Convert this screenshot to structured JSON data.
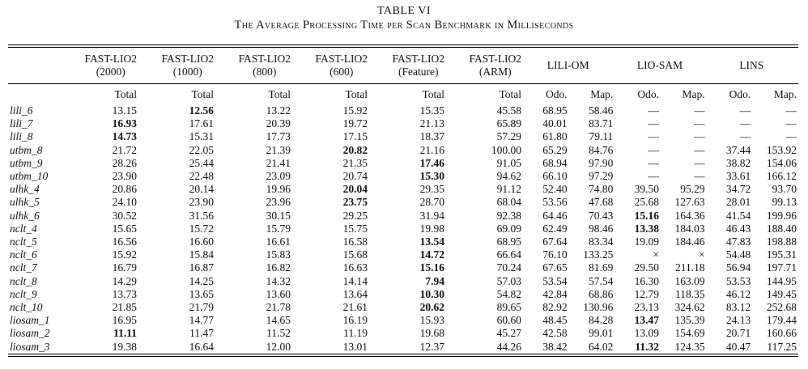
{
  "title": "TABLE VI",
  "subtitle": "The Average Processing Time per Scan Benchmark in Milliseconds",
  "table": {
    "groups": [
      {
        "name": "FAST-LIO2",
        "detail": "(2000)",
        "subs": [
          "Total"
        ]
      },
      {
        "name": "FAST-LIO2",
        "detail": "(1000)",
        "subs": [
          "Total"
        ]
      },
      {
        "name": "FAST-LIO2",
        "detail": "(800)",
        "subs": [
          "Total"
        ]
      },
      {
        "name": "FAST-LIO2",
        "detail": "(600)",
        "subs": [
          "Total"
        ]
      },
      {
        "name": "FAST-LIO2",
        "detail": "(Feature)",
        "subs": [
          "Total"
        ]
      },
      {
        "name": "FAST-LIO2",
        "detail": "(ARM)",
        "subs": [
          "Total"
        ]
      },
      {
        "name": "LILI-OM",
        "detail": "",
        "subs": [
          "Odo.",
          "Map."
        ]
      },
      {
        "name": "LIO-SAM",
        "detail": "",
        "subs": [
          "Odo.",
          "Map."
        ]
      },
      {
        "name": "LINS",
        "detail": "",
        "subs": [
          "Odo.",
          "Map."
        ]
      }
    ],
    "missing_mark": "—",
    "failure_mark": "×",
    "rows": [
      {
        "label": "lili_6",
        "values": [
          "13.15",
          "12.56",
          "13.22",
          "15.92",
          "15.35",
          "45.58",
          "68.95",
          "58.46",
          "—",
          "—",
          "—",
          "—"
        ],
        "bold": [
          1
        ]
      },
      {
        "label": "lili_7",
        "values": [
          "16.93",
          "17.61",
          "20.39",
          "19.72",
          "21.13",
          "65.89",
          "40.01",
          "83.71",
          "—",
          "—",
          "—",
          "—"
        ],
        "bold": [
          0
        ]
      },
      {
        "label": "lili_8",
        "values": [
          "14.73",
          "15.31",
          "17.73",
          "17.15",
          "18.37",
          "57.29",
          "61.80",
          "79.11",
          "—",
          "—",
          "—",
          "—"
        ],
        "bold": [
          0
        ]
      },
      {
        "label": "utbm_8",
        "values": [
          "21.72",
          "22.05",
          "21.39",
          "20.82",
          "21.16",
          "100.00",
          "65.29",
          "84.76",
          "—",
          "—",
          "37.44",
          "153.92"
        ],
        "bold": [
          3
        ]
      },
      {
        "label": "utbm_9",
        "values": [
          "28.26",
          "25.44",
          "21.41",
          "21.35",
          "17.46",
          "91.05",
          "68.94",
          "97.90",
          "—",
          "—",
          "38.82",
          "154.06"
        ],
        "bold": [
          4
        ]
      },
      {
        "label": "utbm_10",
        "values": [
          "23.90",
          "22.48",
          "23.09",
          "20.74",
          "15.30",
          "94.62",
          "66.10",
          "97.29",
          "—",
          "—",
          "33.61",
          "166.12"
        ],
        "bold": [
          4
        ]
      },
      {
        "label": "ulhk_4",
        "values": [
          "20.86",
          "20.14",
          "19.96",
          "20.04",
          "29.35",
          "91.12",
          "52.40",
          "74.80",
          "39.50",
          "95.29",
          "34.72",
          "93.70"
        ],
        "bold": [
          3
        ]
      },
      {
        "label": "ulhk_5",
        "values": [
          "24.10",
          "23.90",
          "23.96",
          "23.75",
          "28.70",
          "68.04",
          "53.56",
          "47.68",
          "25.68",
          "127.63",
          "28.01",
          "99.13"
        ],
        "bold": [
          3
        ]
      },
      {
        "label": "ulhk_6",
        "values": [
          "30.52",
          "31.56",
          "30.15",
          "29.25",
          "31.94",
          "92.38",
          "64.46",
          "70.43",
          "15.16",
          "164.36",
          "41.54",
          "199.96"
        ],
        "bold": [
          8
        ]
      },
      {
        "label": "nclt_4",
        "values": [
          "15.65",
          "15.72",
          "15.79",
          "15.75",
          "19.98",
          "69.09",
          "62.49",
          "98.46",
          "13.38",
          "184.03",
          "46.43",
          "188.40"
        ],
        "bold": [
          8
        ]
      },
      {
        "label": "nclt_5",
        "values": [
          "16.56",
          "16.60",
          "16.61",
          "16.58",
          "13.54",
          "68.95",
          "67.64",
          "83.34",
          "19.09",
          "184.46",
          "47.83",
          "198.88"
        ],
        "bold": [
          4
        ]
      },
      {
        "label": "nclt_6",
        "values": [
          "15.92",
          "15.84",
          "15.83",
          "15.68",
          "14.72",
          "66.64",
          "76.10",
          "133.25",
          "×",
          "×",
          "54.48",
          "195.31"
        ],
        "bold": [
          4
        ]
      },
      {
        "label": "nclt_7",
        "values": [
          "16.79",
          "16.87",
          "16.82",
          "16.63",
          "15.16",
          "70.24",
          "67.65",
          "81.69",
          "29.50",
          "211.18",
          "56.94",
          "197.71"
        ],
        "bold": [
          4
        ]
      },
      {
        "label": "nclt_8",
        "values": [
          "14.29",
          "14.25",
          "14.32",
          "14.14",
          "7.94",
          "57.03",
          "53.54",
          "57.54",
          "16.30",
          "163.09",
          "53.53",
          "144.95"
        ],
        "bold": [
          4
        ]
      },
      {
        "label": "nclt_9",
        "values": [
          "13.73",
          "13.65",
          "13.60",
          "13.64",
          "10.30",
          "54.82",
          "42.84",
          "68.86",
          "12.79",
          "118.35",
          "46.12",
          "149.45"
        ],
        "bold": [
          4
        ]
      },
      {
        "label": "nclt_10",
        "values": [
          "21.85",
          "21.79",
          "21.78",
          "21.61",
          "20.62",
          "89.65",
          "82.92",
          "130.96",
          "23.13",
          "324.62",
          "83.12",
          "252.68"
        ],
        "bold": [
          4
        ]
      },
      {
        "label": "liosam_1",
        "values": [
          "16.95",
          "14.77",
          "14.65",
          "16.19",
          "15.93",
          "60.60",
          "48.45",
          "84.28",
          "13.47",
          "135.39",
          "24.13",
          "179.44"
        ],
        "bold": [
          8
        ]
      },
      {
        "label": "liosam_2",
        "values": [
          "11.11",
          "11.47",
          "11.52",
          "11.19",
          "19.68",
          "45.27",
          "42.58",
          "99.01",
          "13.09",
          "154.69",
          "20.71",
          "160.66"
        ],
        "bold": [
          0
        ]
      },
      {
        "label": "liosam_3",
        "values": [
          "19.38",
          "16.64",
          "12.00",
          "13.01",
          "12.37",
          "44.26",
          "38.42",
          "64.02",
          "11.32",
          "124.35",
          "40.47",
          "117.25"
        ],
        "bold": [
          8
        ]
      }
    ]
  }
}
